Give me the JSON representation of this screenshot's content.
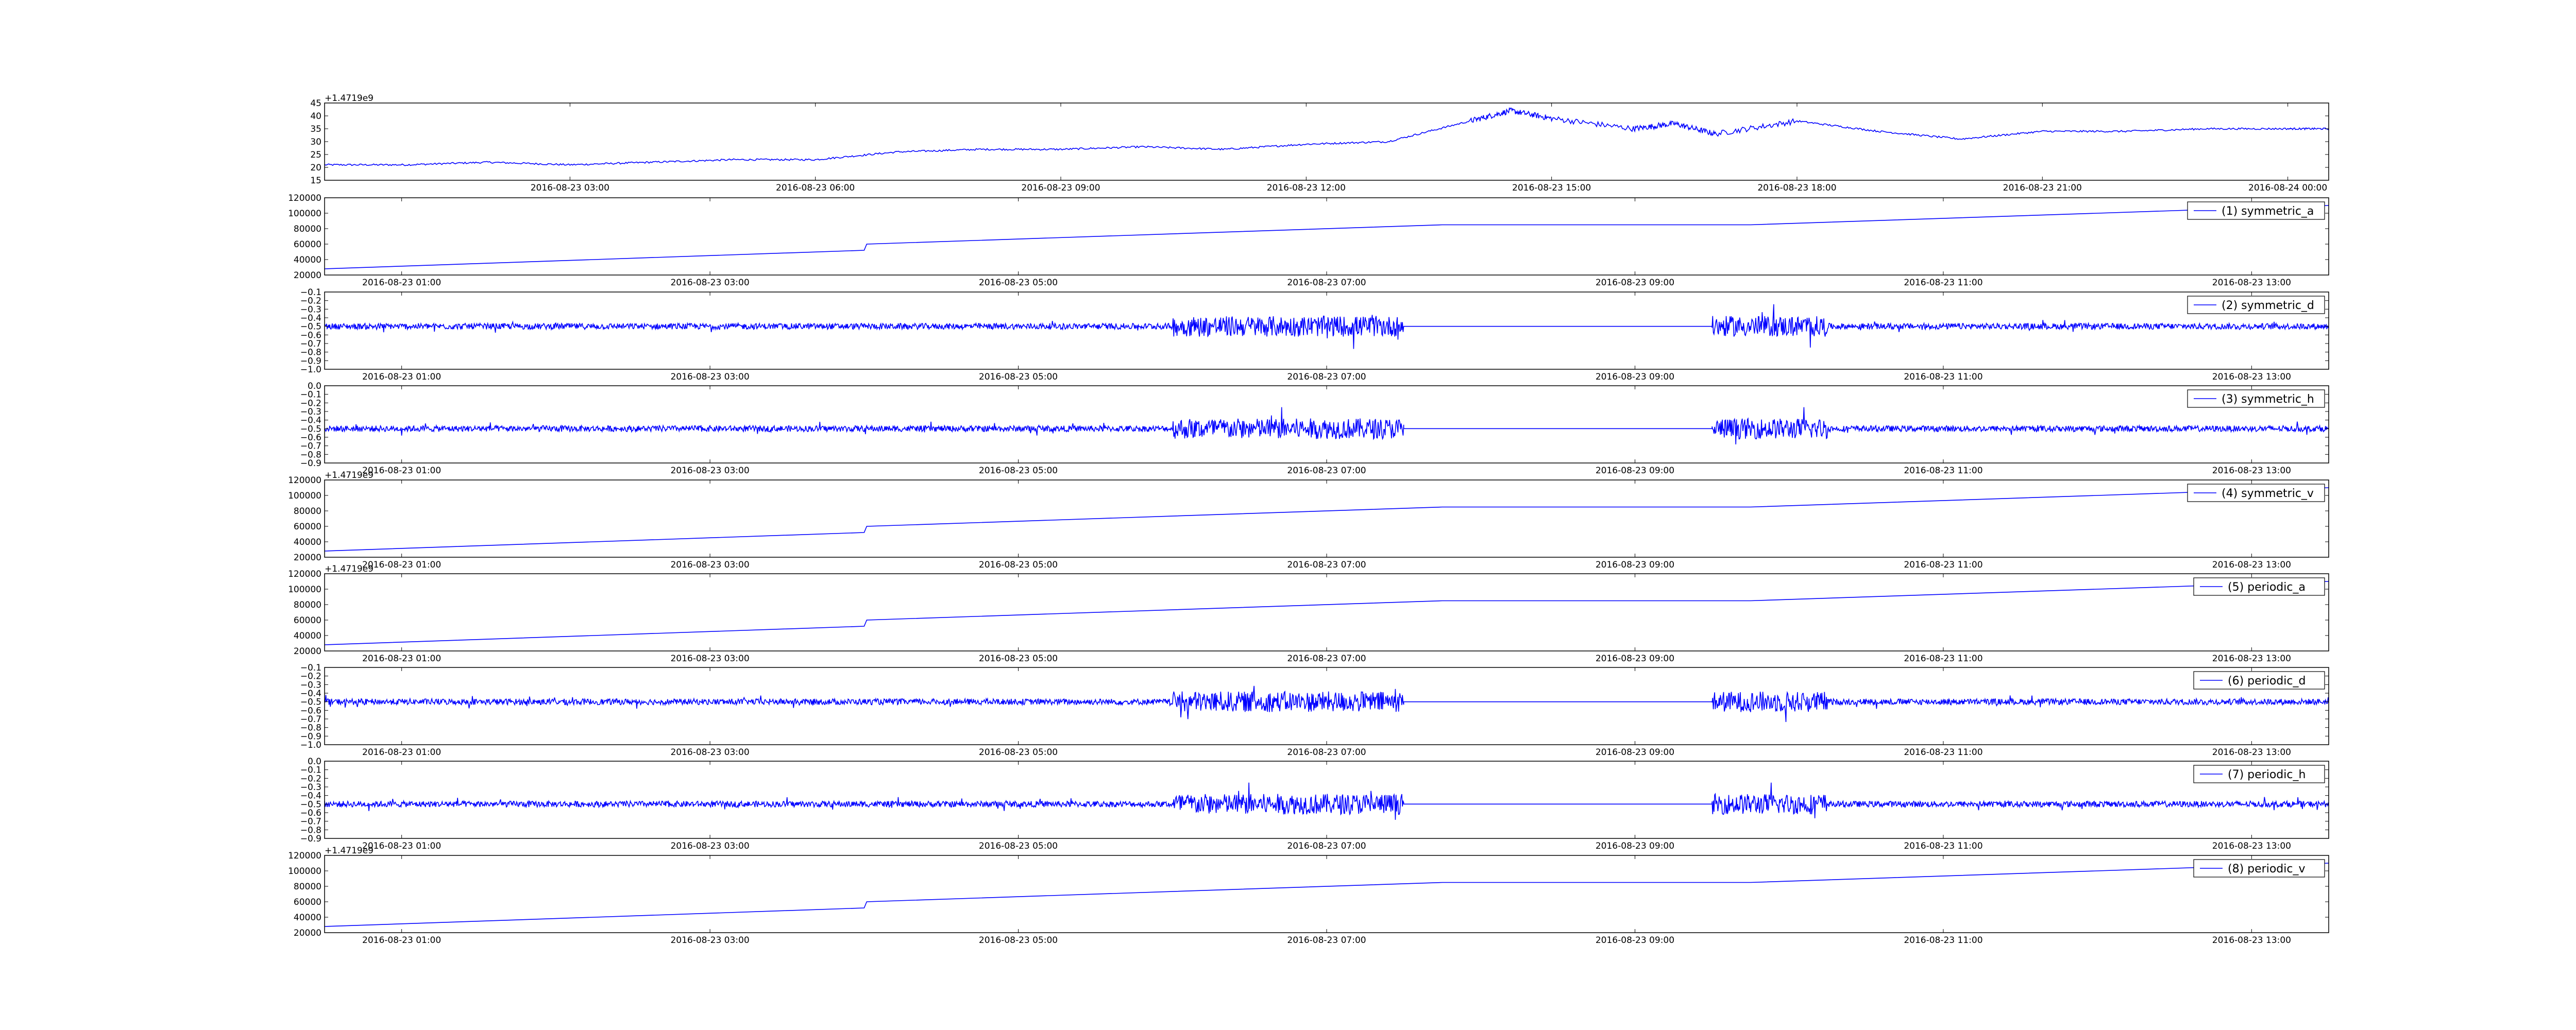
{
  "colors": {
    "line": "#0000ff",
    "axes": "#000000",
    "background": "#ffffff"
  },
  "chart_data": [
    {
      "type": "line",
      "y_ticks": [
        "15",
        "20",
        "25",
        "30",
        "35",
        "40",
        "45"
      ],
      "x_ticks": [
        "2016-08-23 03:00",
        "2016-08-23 06:00",
        "2016-08-23 09:00",
        "2016-08-23 12:00",
        "2016-08-23 15:00",
        "2016-08-23 18:00",
        "2016-08-23 21:00",
        "2016-08-24 00:00"
      ],
      "x": [
        "2016-08-23 00:00",
        "2016-08-23 01:00",
        "2016-08-23 02:00",
        "2016-08-23 03:00",
        "2016-08-23 04:00",
        "2016-08-23 05:00",
        "2016-08-23 06:00",
        "2016-08-23 07:00",
        "2016-08-23 08:00",
        "2016-08-23 09:00",
        "2016-08-23 10:00",
        "2016-08-23 11:00",
        "2016-08-23 12:00",
        "2016-08-23 13:00",
        "2016-08-23 14:00",
        "2016-08-23 14:30",
        "2016-08-23 15:00",
        "2016-08-23 16:00",
        "2016-08-23 16:30",
        "2016-08-23 17:00",
        "2016-08-23 18:00",
        "2016-08-23 19:00",
        "2016-08-23 20:00",
        "2016-08-23 21:00",
        "2016-08-23 22:00",
        "2016-08-23 23:00",
        "2016-08-24 00:00",
        "2016-08-24 00:30"
      ],
      "values": [
        21,
        21,
        22,
        21,
        22,
        23,
        23,
        26,
        27,
        27,
        28,
        27,
        29,
        30,
        38,
        42,
        39,
        35,
        37,
        33,
        38,
        34,
        31,
        34,
        34,
        35,
        35,
        35
      ],
      "ylim": [
        15,
        45
      ],
      "x_range": [
        "2016-08-23 00:00",
        "2016-08-24 00:30"
      ],
      "offset_label": "+1.4719e9",
      "legend": ""
    },
    {
      "type": "line",
      "y_ticks": [
        "20000",
        "40000",
        "60000",
        "80000",
        "100000",
        "120000"
      ],
      "x_ticks": [
        "2016-08-23 01:00",
        "2016-08-23 03:00",
        "2016-08-23 05:00",
        "2016-08-23 07:00",
        "2016-08-23 09:00",
        "2016-08-23 11:00",
        "2016-08-23 13:00"
      ],
      "shape": "ramp",
      "ylim": [
        20000,
        120000
      ],
      "offset_label": "",
      "legend": "(1) symmetric_a"
    },
    {
      "type": "line",
      "y_ticks": [
        "−1.0",
        "−0.9",
        "−0.8",
        "−0.7",
        "−0.6",
        "−0.5",
        "−0.4",
        "−0.3",
        "−0.2",
        "−0.1"
      ],
      "x_ticks": [
        "2016-08-23 01:00",
        "2016-08-23 03:00",
        "2016-08-23 05:00",
        "2016-08-23 07:00",
        "2016-08-23 09:00",
        "2016-08-23 11:00",
        "2016-08-23 13:00"
      ],
      "shape": "noise",
      "ylim": [
        -1.0,
        -0.1
      ],
      "baseline": -0.5,
      "offset_label": "",
      "legend": "(2) symmetric_d"
    },
    {
      "type": "line",
      "y_ticks": [
        "−0.9",
        "−0.8",
        "−0.7",
        "−0.6",
        "−0.5",
        "−0.4",
        "−0.3",
        "−0.2",
        "−0.1",
        "0.0"
      ],
      "x_ticks": [
        "2016-08-23 01:00",
        "2016-08-23 03:00",
        "2016-08-23 05:00",
        "2016-08-23 07:00",
        "2016-08-23 09:00",
        "2016-08-23 11:00",
        "2016-08-23 13:00"
      ],
      "shape": "noise",
      "ylim": [
        -0.9,
        0.0
      ],
      "baseline": -0.5,
      "offset_label": "",
      "legend": "(3) symmetric_h"
    },
    {
      "type": "line",
      "y_ticks": [
        "20000",
        "40000",
        "60000",
        "80000",
        "100000",
        "120000"
      ],
      "x_ticks": [
        "2016-08-23 01:00",
        "2016-08-23 03:00",
        "2016-08-23 05:00",
        "2016-08-23 07:00",
        "2016-08-23 09:00",
        "2016-08-23 11:00",
        "2016-08-23 13:00"
      ],
      "shape": "ramp",
      "ylim": [
        20000,
        120000
      ],
      "offset_label": "+1.4719e9",
      "legend": "(4) symmetric_v"
    },
    {
      "type": "line",
      "y_ticks": [
        "20000",
        "40000",
        "60000",
        "80000",
        "100000",
        "120000"
      ],
      "x_ticks": [
        "2016-08-23 01:00",
        "2016-08-23 03:00",
        "2016-08-23 05:00",
        "2016-08-23 07:00",
        "2016-08-23 09:00",
        "2016-08-23 11:00",
        "2016-08-23 13:00"
      ],
      "shape": "ramp",
      "ylim": [
        20000,
        120000
      ],
      "offset_label": "+1.4719e9",
      "legend": "(5) periodic_a"
    },
    {
      "type": "line",
      "y_ticks": [
        "−1.0",
        "−0.9",
        "−0.8",
        "−0.7",
        "−0.6",
        "−0.5",
        "−0.4",
        "−0.3",
        "−0.2",
        "−0.1"
      ],
      "x_ticks": [
        "2016-08-23 01:00",
        "2016-08-23 03:00",
        "2016-08-23 05:00",
        "2016-08-23 07:00",
        "2016-08-23 09:00",
        "2016-08-23 11:00",
        "2016-08-23 13:00"
      ],
      "shape": "noise",
      "ylim": [
        -1.0,
        -0.1
      ],
      "baseline": -0.5,
      "offset_label": "",
      "legend": "(6) periodic_d"
    },
    {
      "type": "line",
      "y_ticks": [
        "−0.9",
        "−0.8",
        "−0.7",
        "−0.6",
        "−0.5",
        "−0.4",
        "−0.3",
        "−0.2",
        "−0.1",
        "0.0"
      ],
      "x_ticks": [
        "2016-08-23 01:00",
        "2016-08-23 03:00",
        "2016-08-23 05:00",
        "2016-08-23 07:00",
        "2016-08-23 09:00",
        "2016-08-23 11:00",
        "2016-08-23 13:00"
      ],
      "shape": "noise",
      "ylim": [
        -0.9,
        0.0
      ],
      "baseline": -0.5,
      "offset_label": "",
      "legend": "(7) periodic_h"
    },
    {
      "type": "line",
      "y_ticks": [
        "20000",
        "40000",
        "60000",
        "80000",
        "100000",
        "120000"
      ],
      "x_ticks": [
        "2016-08-23 01:00",
        "2016-08-23 03:00",
        "2016-08-23 05:00",
        "2016-08-23 07:00",
        "2016-08-23 09:00",
        "2016-08-23 11:00",
        "2016-08-23 13:00"
      ],
      "shape": "ramp",
      "ylim": [
        20000,
        120000
      ],
      "offset_label": "+1.4719e9",
      "legend": "(8) periodic_v"
    }
  ],
  "ramp_series": {
    "x_range": [
      "2016-08-23 00:30",
      "2016-08-23 13:30"
    ],
    "x": [
      "2016-08-23 00:30",
      "2016-08-23 04:00",
      "2016-08-23 04:01",
      "2016-08-23 07:45",
      "2016-08-23 09:45",
      "2016-08-23 13:30"
    ],
    "values": [
      28000,
      52000,
      60000,
      85000,
      85000,
      110000
    ]
  },
  "noise_series": {
    "x_range": [
      "2016-08-23 00:30",
      "2016-08-23 13:30"
    ],
    "active_segments": [
      [
        "2016-08-23 00:30",
        "2016-08-23 07:30"
      ],
      [
        "2016-08-23 09:30",
        "2016-08-23 13:30"
      ]
    ],
    "flat_segment": [
      "2016-08-23 07:30",
      "2016-08-23 09:30"
    ]
  }
}
